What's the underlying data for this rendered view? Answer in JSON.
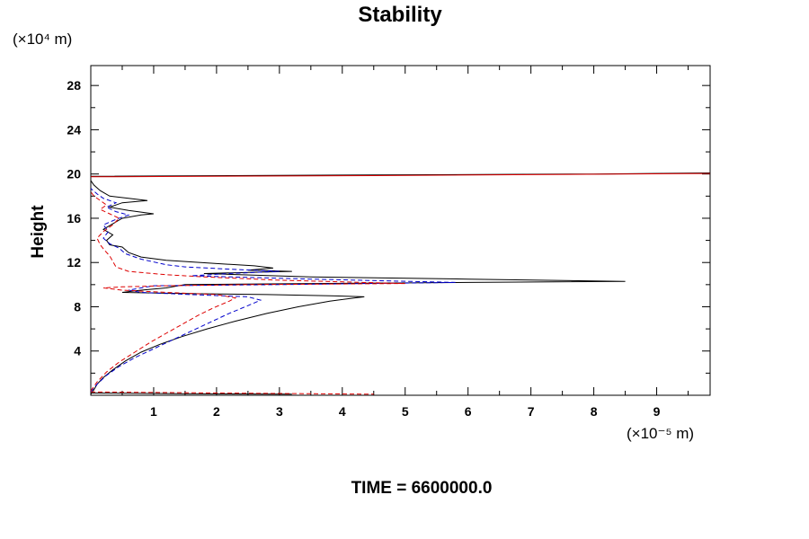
{
  "chart_data": {
    "type": "line",
    "title": "Stability",
    "xlabel": "",
    "ylabel": "Height",
    "x_units": "(×10⁻⁵ m)",
    "y_units": "(×10⁴ m)",
    "xlim": [
      0,
      9.85
    ],
    "ylim": [
      0,
      29.8
    ],
    "xticks": [
      1,
      2,
      3,
      4,
      5,
      6,
      7,
      8,
      9
    ],
    "yticks": [
      4,
      8,
      12,
      16,
      20,
      24,
      28
    ],
    "grid": false,
    "series": [
      {
        "name": "black-solid",
        "color": "#000000",
        "dash": "",
        "points": [
          [
            0,
            0.1
          ],
          [
            0.05,
            0.5
          ],
          [
            0.1,
            1.0
          ],
          [
            0.2,
            1.6
          ],
          [
            0.35,
            2.3
          ],
          [
            0.55,
            3.1
          ],
          [
            0.8,
            3.9
          ],
          [
            1.1,
            4.6
          ],
          [
            1.45,
            5.3
          ],
          [
            1.85,
            6.0
          ],
          [
            2.3,
            6.7
          ],
          [
            2.8,
            7.4
          ],
          [
            3.3,
            8.0
          ],
          [
            3.8,
            8.5
          ],
          [
            4.2,
            8.8
          ],
          [
            4.35,
            8.9
          ],
          [
            3.8,
            9.0
          ],
          [
            2.8,
            9.1
          ],
          [
            1.5,
            9.2
          ],
          [
            0.5,
            9.3
          ],
          [
            0.8,
            9.5
          ],
          [
            1.2,
            9.7
          ],
          [
            1.5,
            10.0
          ],
          [
            3.5,
            10.1
          ],
          [
            6,
            10.2
          ],
          [
            8.5,
            10.3
          ],
          [
            6,
            10.5
          ],
          [
            3.5,
            10.7
          ],
          [
            1.8,
            11.0
          ],
          [
            2.5,
            11.1
          ],
          [
            3.2,
            11.2
          ],
          [
            2.5,
            11.3
          ],
          [
            2.9,
            11.5
          ],
          [
            2.6,
            11.7
          ],
          [
            2.0,
            11.9
          ],
          [
            1.2,
            12.2
          ],
          [
            0.8,
            12.5
          ],
          [
            0.6,
            12.9
          ],
          [
            0.5,
            13.4
          ],
          [
            0.3,
            13.6
          ],
          [
            0.25,
            14.0
          ],
          [
            0.35,
            14.5
          ],
          [
            0.2,
            15.0
          ],
          [
            0.35,
            15.5
          ],
          [
            0.5,
            16.0
          ],
          [
            0.8,
            16.3
          ],
          [
            1.0,
            16.4
          ],
          [
            0.6,
            16.7
          ],
          [
            0.3,
            17.0
          ],
          [
            0.5,
            17.4
          ],
          [
            0.9,
            17.6
          ],
          [
            0.6,
            17.8
          ],
          [
            0.3,
            18.0
          ],
          [
            0.15,
            18.5
          ],
          [
            0.05,
            19.0
          ],
          [
            0,
            19.4
          ]
        ]
      },
      {
        "name": "blue-dashed",
        "color": "#0000cc",
        "dash": "5,3",
        "points": [
          [
            0,
            0.3
          ],
          [
            0.1,
            1.0
          ],
          [
            0.25,
            1.8
          ],
          [
            0.45,
            2.6
          ],
          [
            0.7,
            3.4
          ],
          [
            1.0,
            4.2
          ],
          [
            1.3,
            5.0
          ],
          [
            1.6,
            5.8
          ],
          [
            1.9,
            6.6
          ],
          [
            2.2,
            7.4
          ],
          [
            2.5,
            8.1
          ],
          [
            2.7,
            8.6
          ],
          [
            2.5,
            8.9
          ],
          [
            1.6,
            9.1
          ],
          [
            0.8,
            9.3
          ],
          [
            0.6,
            9.5
          ],
          [
            0.8,
            9.7
          ],
          [
            1.0,
            9.9
          ],
          [
            3.0,
            10.0
          ],
          [
            5.8,
            10.2
          ],
          [
            3.5,
            10.5
          ],
          [
            1.6,
            10.8
          ],
          [
            2.2,
            11.0
          ],
          [
            3.0,
            11.2
          ],
          [
            2.2,
            11.4
          ],
          [
            1.5,
            11.6
          ],
          [
            1.2,
            11.8
          ],
          [
            0.8,
            12.3
          ],
          [
            0.55,
            12.8
          ],
          [
            0.45,
            13.3
          ],
          [
            0.3,
            13.7
          ],
          [
            0.2,
            14.2
          ],
          [
            0.28,
            14.8
          ],
          [
            0.2,
            15.4
          ],
          [
            0.4,
            15.9
          ],
          [
            0.6,
            16.3
          ],
          [
            0.4,
            16.6
          ],
          [
            0.25,
            17.0
          ],
          [
            0.4,
            17.4
          ],
          [
            0.2,
            17.8
          ],
          [
            0.1,
            18.2
          ],
          [
            0,
            18.7
          ]
        ]
      },
      {
        "name": "red-dashed",
        "color": "#dd0000",
        "dash": "5,3",
        "points": [
          [
            0,
            0.4
          ],
          [
            0.1,
            1.2
          ],
          [
            0.25,
            2.1
          ],
          [
            0.45,
            3.0
          ],
          [
            0.7,
            3.9
          ],
          [
            0.95,
            4.8
          ],
          [
            1.2,
            5.6
          ],
          [
            1.45,
            6.4
          ],
          [
            1.7,
            7.2
          ],
          [
            1.95,
            7.9
          ],
          [
            2.2,
            8.5
          ],
          [
            2.3,
            8.8
          ],
          [
            2.0,
            9.1
          ],
          [
            1.2,
            9.3
          ],
          [
            0.5,
            9.5
          ],
          [
            0.2,
            9.7
          ],
          [
            0.5,
            9.8
          ],
          [
            1.2,
            9.9
          ],
          [
            2.5,
            10.0
          ],
          [
            5.0,
            10.1
          ],
          [
            3.0,
            10.4
          ],
          [
            1.8,
            10.7
          ],
          [
            1.2,
            10.9
          ],
          [
            0.6,
            11.2
          ],
          [
            0.4,
            11.6
          ],
          [
            0.35,
            12.1
          ],
          [
            0.3,
            12.6
          ],
          [
            0.22,
            13.1
          ],
          [
            0.15,
            13.6
          ],
          [
            0.1,
            14.2
          ],
          [
            0.2,
            14.8
          ],
          [
            0.35,
            15.4
          ],
          [
            0.45,
            16.0
          ],
          [
            0.3,
            16.4
          ],
          [
            0.15,
            16.8
          ],
          [
            0.25,
            17.2
          ],
          [
            0.15,
            17.6
          ],
          [
            0.05,
            18.0
          ],
          [
            0,
            18.4
          ]
        ]
      },
      {
        "name": "black-top",
        "color": "#000000",
        "dash": "",
        "points": [
          [
            0,
            19.8
          ],
          [
            4,
            19.9
          ],
          [
            8,
            20.0
          ],
          [
            9.85,
            20.1
          ]
        ]
      },
      {
        "name": "red-top",
        "color": "#dd0000",
        "dash": "",
        "points": [
          [
            0,
            19.75
          ],
          [
            4.5,
            19.85
          ],
          [
            9.85,
            20.05
          ]
        ]
      },
      {
        "name": "black-bottom",
        "color": "#000000",
        "dash": "",
        "points": [
          [
            0,
            0.2
          ],
          [
            1.5,
            0.15
          ],
          [
            3.2,
            0.1
          ]
        ]
      },
      {
        "name": "red-bottom",
        "color": "#dd0000",
        "dash": "5,3",
        "points": [
          [
            0,
            0.3
          ],
          [
            2,
            0.2
          ],
          [
            4.5,
            0.1
          ]
        ]
      }
    ]
  },
  "footer": {
    "time_label": "TIME = 6600000.0"
  }
}
